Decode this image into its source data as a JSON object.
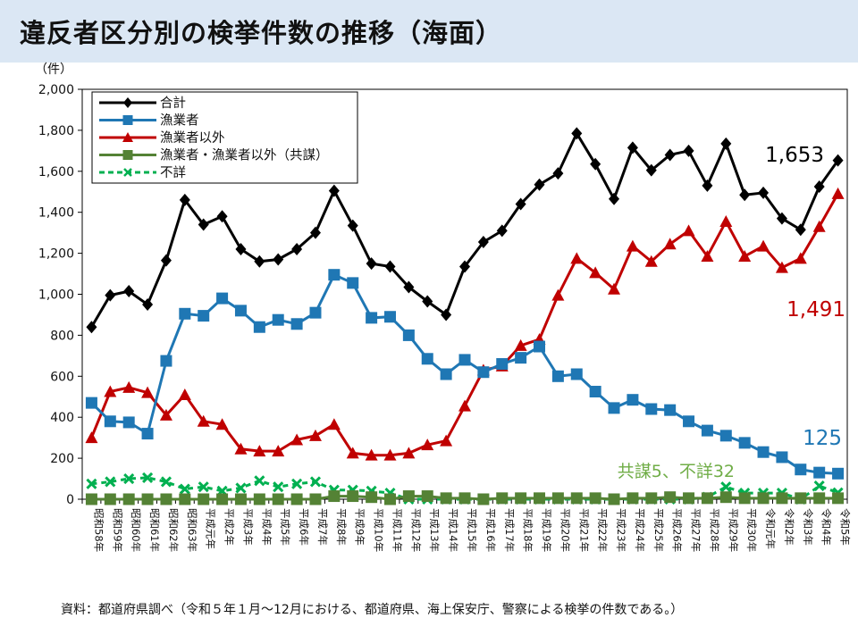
{
  "title": "違反者区分別の検挙件数の推移（海面）",
  "source": "資料：都道府県調べ（令和５年１月～12月における、都道府県、海上保安庁、警察による検挙の件数である。）",
  "chart_data": {
    "type": "line",
    "ylabel": "（件）",
    "ylim": [
      0,
      2000
    ],
    "yticks": [
      "0",
      "200",
      "400",
      "600",
      "800",
      "1,000",
      "1,200",
      "1,400",
      "1,600",
      "1,800",
      "2,000"
    ],
    "categories": [
      "昭和58年",
      "昭和59年",
      "昭和60年",
      "昭和61年",
      "昭和62年",
      "昭和63年",
      "平成元年",
      "平成2年",
      "平成3年",
      "平成4年",
      "平成5年",
      "平成6年",
      "平成7年",
      "平成8年",
      "平成9年",
      "平成10年",
      "平成11年",
      "平成12年",
      "平成13年",
      "平成14年",
      "平成15年",
      "平成16年",
      "平成17年",
      "平成18年",
      "平成19年",
      "平成20年",
      "平成21年",
      "平成22年",
      "平成23年",
      "平成24年",
      "平成25年",
      "平成26年",
      "平成27年",
      "平成28年",
      "平成29年",
      "平成30年",
      "令和元年",
      "令和2年",
      "令和3年",
      "令和4年",
      "令和5年"
    ],
    "series": [
      {
        "name": "合計",
        "color": "#000000",
        "marker": "diamond",
        "values": [
          840,
          995,
          1015,
          950,
          1165,
          1460,
          1340,
          1380,
          1220,
          1160,
          1170,
          1220,
          1300,
          1505,
          1335,
          1150,
          1135,
          1035,
          965,
          900,
          1135,
          1255,
          1310,
          1440,
          1535,
          1590,
          1785,
          1635,
          1465,
          1715,
          1605,
          1680,
          1700,
          1530,
          1735,
          1485,
          1495,
          1370,
          1315,
          1525,
          1653
        ]
      },
      {
        "name": "漁業者",
        "color": "#1f77b4",
        "marker": "square",
        "values": [
          470,
          380,
          375,
          320,
          675,
          905,
          895,
          980,
          920,
          840,
          875,
          855,
          910,
          1095,
          1055,
          885,
          890,
          800,
          685,
          610,
          680,
          620,
          660,
          690,
          745,
          600,
          610,
          525,
          445,
          485,
          440,
          435,
          380,
          335,
          310,
          275,
          230,
          205,
          145,
          130,
          125
        ]
      },
      {
        "name": "漁業者以外",
        "color": "#c00000",
        "marker": "triangle",
        "values": [
          300,
          525,
          545,
          520,
          410,
          510,
          380,
          365,
          245,
          235,
          235,
          290,
          310,
          365,
          225,
          215,
          215,
          225,
          265,
          285,
          455,
          630,
          650,
          750,
          780,
          995,
          1175,
          1105,
          1025,
          1235,
          1160,
          1245,
          1310,
          1185,
          1355,
          1185,
          1235,
          1130,
          1175,
          1330,
          1491
        ]
      },
      {
        "name": "漁業者・漁業者以外（共謀）",
        "color": "#548235",
        "marker": "square",
        "values": [
          0,
          0,
          0,
          0,
          0,
          0,
          0,
          0,
          0,
          0,
          0,
          0,
          0,
          15,
          15,
          10,
          0,
          15,
          15,
          5,
          5,
          0,
          5,
          5,
          5,
          5,
          5,
          5,
          0,
          5,
          5,
          10,
          5,
          5,
          10,
          5,
          5,
          5,
          5,
          5,
          5
        ]
      },
      {
        "name": "不詳",
        "color": "#00b050",
        "marker": "cross",
        "dashed": true,
        "values": [
          75,
          85,
          100,
          105,
          85,
          50,
          60,
          40,
          55,
          90,
          60,
          75,
          85,
          45,
          45,
          40,
          30,
          0,
          0,
          0,
          0,
          0,
          0,
          0,
          0,
          0,
          0,
          0,
          0,
          0,
          0,
          0,
          0,
          10,
          60,
          30,
          30,
          30,
          0,
          65,
          32
        ]
      }
    ],
    "annotations": [
      {
        "text": "1,653",
        "color": "#000000"
      },
      {
        "text": "1,491",
        "color": "#c00000"
      },
      {
        "text": "125",
        "color": "#1f77b4"
      },
      {
        "text": "共謀5、不詳32",
        "color": "#70ad47"
      }
    ]
  }
}
